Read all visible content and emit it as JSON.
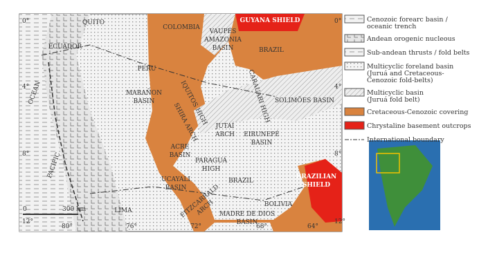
{
  "map": {
    "labels": [
      {
        "lines": [
          "QUITO"
        ]
      },
      {
        "lines": [
          "ECUADOR"
        ]
      },
      {
        "lines": [
          "COLOMBIA"
        ]
      },
      {
        "lines": [
          "VAUPÉS",
          "AMAZONIA",
          "BASIN"
        ]
      },
      {
        "lines": [
          "GUYANA SHIELD"
        ]
      },
      {
        "lines": [
          "BRAZIL"
        ]
      },
      {
        "lines": [
          "PERU"
        ]
      },
      {
        "lines": [
          "MARAÑON",
          "BASIN"
        ]
      },
      {
        "lines": [
          "IQUITOS HIGH"
        ]
      },
      {
        "lines": [
          "CARAUARI HIGH"
        ]
      },
      {
        "lines": [
          "SOLIMÕES BASIN"
        ]
      },
      {
        "lines": [
          "SHIRA ARCH"
        ]
      },
      {
        "lines": [
          "JUTAÍ",
          "ARCH"
        ]
      },
      {
        "lines": [
          "EIRUNEPÉ",
          "BASIN"
        ]
      },
      {
        "lines": [
          "ACRE",
          "BASIN"
        ]
      },
      {
        "lines": [
          "PARAGUÁ",
          "HIGH"
        ]
      },
      {
        "lines": [
          "UCAYALI",
          "BASIN"
        ]
      },
      {
        "lines": [
          "BRAZIL"
        ]
      },
      {
        "lines": [
          "BRAZILIAN",
          "SHIELD"
        ]
      },
      {
        "lines": [
          "FITZCARRALD",
          "ARCH"
        ]
      },
      {
        "lines": [
          "BOLIVIA"
        ]
      },
      {
        "lines": [
          "MADRE DE DIOS",
          "BASIN"
        ]
      },
      {
        "lines": [
          "LIMA"
        ]
      },
      {
        "lines": [
          "OCEAN"
        ]
      },
      {
        "lines": [
          "PACIFIC"
        ]
      }
    ],
    "lat_left": [
      "0°",
      "4°",
      "8°",
      "12°"
    ],
    "lat_right": [
      "0°",
      "4°",
      "8°",
      "12°"
    ],
    "lon": [
      "80°",
      "76°",
      "72°",
      "68°",
      "64°"
    ],
    "scale": {
      "start": "0",
      "end": "300 km"
    }
  },
  "legend": {
    "items": [
      {
        "lines": [
          "Cenozoic forearc basin /",
          "oceanic trench"
        ]
      },
      {
        "lines": [
          "Andean orogenic nucleous"
        ]
      },
      {
        "lines": [
          "Sub-andean thrusts / fold belts"
        ]
      },
      {
        "lines": [
          "Multicyclic foreland basin",
          "(Juruá and Cretaceous-",
          "Cenozoic fold-belts)"
        ]
      },
      {
        "lines": [
          "Multicyclic basin",
          "(Juruá fold belt)"
        ]
      },
      {
        "lines": [
          "Cretaceous-Cenozoic covering"
        ]
      },
      {
        "lines": [
          "Chrystaline basement outcrops"
        ]
      },
      {
        "lines": [
          "International boundary"
        ]
      }
    ]
  }
}
